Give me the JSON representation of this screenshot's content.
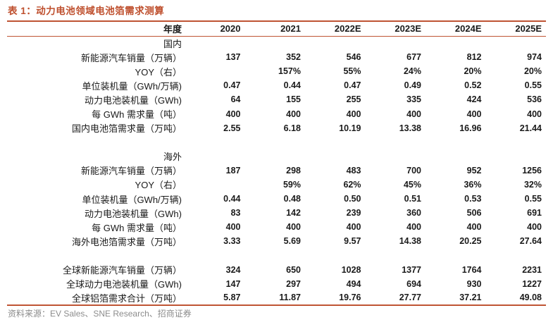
{
  "title": "表 1：动力电池领域电池箔需求测算",
  "source": {
    "label": "资料来源：",
    "text": "EV Sales、SNE Research、招商证券"
  },
  "colors": {
    "accent_red": "#BE4E2C",
    "rule_red": "#BF5434",
    "body_text": "#1A1A1A",
    "source_gray": "#8C8C8C"
  },
  "table": {
    "header": [
      "年度",
      "2020",
      "2021",
      "2022E",
      "2023E",
      "2024E",
      "2025E"
    ],
    "rows": [
      {
        "type": "section",
        "label": "国内",
        "values": [
          "",
          "",
          "",
          "",
          "",
          ""
        ]
      },
      {
        "type": "data",
        "label": "新能源汽车销量（万辆）",
        "values": [
          "137",
          "352",
          "546",
          "677",
          "812",
          "974"
        ]
      },
      {
        "type": "data",
        "label": "YOY（右）",
        "values": [
          "",
          "157%",
          "55%",
          "24%",
          "20%",
          "20%"
        ]
      },
      {
        "type": "data",
        "label": "单位装机量（GWh/万辆)",
        "values": [
          "0.47",
          "0.44",
          "0.47",
          "0.49",
          "0.52",
          "0.55"
        ]
      },
      {
        "type": "data",
        "label": "动力电池装机量（GWh)",
        "values": [
          "64",
          "155",
          "255",
          "335",
          "424",
          "536"
        ]
      },
      {
        "type": "data",
        "label": "每 GWh 需求量（吨）",
        "values": [
          "400",
          "400",
          "400",
          "400",
          "400",
          "400"
        ]
      },
      {
        "type": "data",
        "label": "国内电池箔需求量（万吨）",
        "values": [
          "2.55",
          "6.18",
          "10.19",
          "13.38",
          "16.96",
          "21.44"
        ]
      },
      {
        "type": "spacer",
        "label": "",
        "values": [
          "",
          "",
          "",
          "",
          "",
          ""
        ]
      },
      {
        "type": "section",
        "label": "海外",
        "values": [
          "",
          "",
          "",
          "",
          "",
          ""
        ]
      },
      {
        "type": "data",
        "label": "新能源汽车销量（万辆）",
        "values": [
          "187",
          "298",
          "483",
          "700",
          "952",
          "1256"
        ]
      },
      {
        "type": "data",
        "label": "YOY（右）",
        "values": [
          "",
          "59%",
          "62%",
          "45%",
          "36%",
          "32%"
        ]
      },
      {
        "type": "data",
        "label": "单位装机量（GWh/万辆)",
        "values": [
          "0.44",
          "0.48",
          "0.50",
          "0.51",
          "0.53",
          "0.55"
        ]
      },
      {
        "type": "data",
        "label": "动力电池装机量（GWh)",
        "values": [
          "83",
          "142",
          "239",
          "360",
          "506",
          "691"
        ]
      },
      {
        "type": "data",
        "label": "每 GWh 需求量（吨）",
        "values": [
          "400",
          "400",
          "400",
          "400",
          "400",
          "400"
        ]
      },
      {
        "type": "data",
        "label": "海外电池箔需求量（万吨）",
        "values": [
          "3.33",
          "5.69",
          "9.57",
          "14.38",
          "20.25",
          "27.64"
        ]
      },
      {
        "type": "spacer",
        "label": "",
        "values": [
          "",
          "",
          "",
          "",
          "",
          ""
        ]
      },
      {
        "type": "data",
        "label": "全球新能源汽车销量（万辆）",
        "values": [
          "324",
          "650",
          "1028",
          "1377",
          "1764",
          "2231"
        ]
      },
      {
        "type": "data",
        "label": "全球动力电池装机量（GWh)",
        "values": [
          "147",
          "297",
          "494",
          "694",
          "930",
          "1227"
        ]
      },
      {
        "type": "data",
        "label": "全球铝箔需求合计（万吨）",
        "values": [
          "5.87",
          "11.87",
          "19.76",
          "27.77",
          "37.21",
          "49.08"
        ]
      }
    ]
  }
}
